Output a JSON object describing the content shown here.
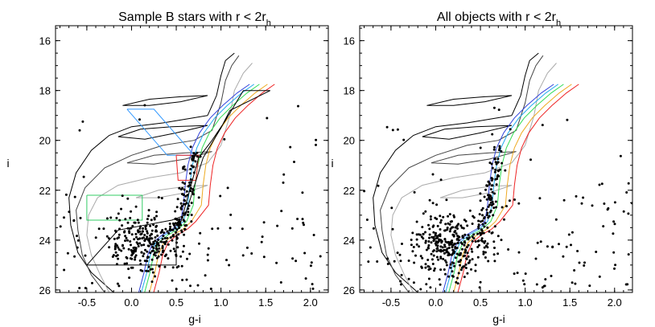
{
  "chart_data": [
    {
      "type": "scatter",
      "title_main": "Sample B stars with r < 2r",
      "title_subscript": "h",
      "xlabel": "g-i",
      "ylabel": "i",
      "xlim": [
        -0.85,
        2.2
      ],
      "ylim": [
        26.1,
        15.4
      ],
      "x_ticks": [
        "-0.5",
        "0.0",
        "0.5",
        "1.0",
        "1.5",
        "2.0"
      ],
      "y_ticks": [
        "16",
        "18",
        "20",
        "22",
        "24",
        "26"
      ],
      "grid": false,
      "selection_boxes": [
        {
          "name": "blue",
          "color": "#3399ff",
          "points": [
            [
              -0.05,
              18.75
            ],
            [
              0.25,
              18.75
            ],
            [
              0.7,
              20.6
            ],
            [
              0.4,
              20.6
            ],
            [
              -0.05,
              18.75
            ]
          ]
        },
        {
          "name": "red",
          "color": "#ee2222",
          "points": [
            [
              0.5,
              20.6
            ],
            [
              0.75,
              20.6
            ],
            [
              0.72,
              21.6
            ],
            [
              0.52,
              21.6
            ],
            [
              0.5,
              20.6
            ]
          ]
        },
        {
          "name": "green",
          "color": "#33cc66",
          "points": [
            [
              -0.5,
              22.2
            ],
            [
              0.12,
              22.2
            ],
            [
              0.12,
              23.2
            ],
            [
              -0.5,
              23.2
            ],
            [
              -0.5,
              22.2
            ]
          ]
        },
        {
          "name": "black",
          "color": "#000000",
          "points": [
            [
              -0.5,
              25.0
            ],
            [
              -0.15,
              23.6
            ],
            [
              0.45,
              23.2
            ],
            [
              0.6,
              23.0
            ],
            [
              0.8,
              20.7
            ],
            [
              1.0,
              19.5
            ],
            [
              1.1,
              18.8
            ],
            [
              1.55,
              18.0
            ],
            [
              1.25,
              18.0
            ],
            [
              1.05,
              19.2
            ],
            [
              0.9,
              20.0
            ],
            [
              0.75,
              20.7
            ],
            [
              0.65,
              22.0
            ],
            [
              0.55,
              23.3
            ],
            [
              0.5,
              23.7
            ],
            [
              0.5,
              25.0
            ],
            [
              0.3,
              25.0
            ],
            [
              -0.5,
              25.0
            ]
          ]
        }
      ],
      "star_count": 460,
      "scatter_seed": 11
    },
    {
      "type": "scatter",
      "title_main": "All objects with r < 2r",
      "title_subscript": "h",
      "xlabel": "g-i",
      "ylabel": "i",
      "xlim": [
        -0.85,
        2.2
      ],
      "ylim": [
        26.1,
        15.4
      ],
      "x_ticks": [
        "-0.5",
        "0.0",
        "0.5",
        "1.0",
        "1.5",
        "2.0"
      ],
      "y_ticks": [
        "16",
        "18",
        "20",
        "22",
        "24",
        "26"
      ],
      "grid": false,
      "selection_boxes": [],
      "star_count": 520,
      "scatter_seed": 29
    }
  ],
  "isochrones": {
    "colored": [
      {
        "color": "#3344dd",
        "offset": 0.0
      },
      {
        "color": "#22aaee",
        "offset": 0.05
      },
      {
        "color": "#33dd55",
        "offset": 0.11
      },
      {
        "color": "#eeaa22",
        "offset": 0.2
      },
      {
        "color": "#ee2222",
        "offset": 0.28
      }
    ],
    "gray": [
      {
        "color": "#000000"
      },
      {
        "color": "#555555"
      },
      {
        "color": "#aaaaaa"
      }
    ]
  }
}
